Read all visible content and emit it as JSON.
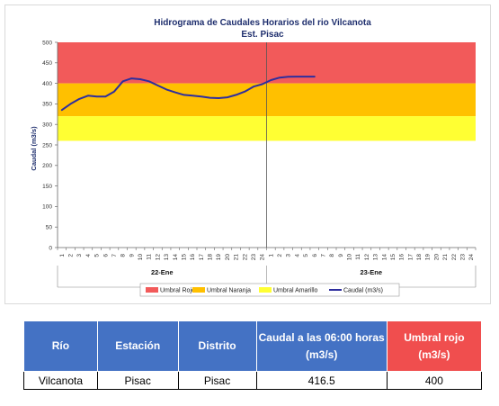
{
  "chart_data": {
    "type": "line",
    "title": "Hidrograma de Caudales Horarios del rio Vilcanota",
    "subtitle": "Est. Pisac",
    "ylabel": "Caudal  (m3/s)",
    "ylim": [
      0,
      500
    ],
    "yticks": [
      0,
      50,
      100,
      150,
      200,
      250,
      300,
      350,
      400,
      450,
      500
    ],
    "xtick_labels": [
      "1",
      "2",
      "3",
      "4",
      "5",
      "6",
      "7",
      "8",
      "9",
      "10",
      "11",
      "12",
      "13",
      "14",
      "15",
      "16",
      "17",
      "18",
      "19",
      "20",
      "21",
      "22",
      "23",
      "24",
      "1",
      "2",
      "3",
      "4",
      "5",
      "6",
      "7",
      "8",
      "9",
      "10",
      "11",
      "12",
      "13",
      "14",
      "15",
      "16",
      "17",
      "18",
      "19",
      "20",
      "21",
      "22",
      "23",
      "24"
    ],
    "day_labels": [
      "22-Ene",
      "23-Ene"
    ],
    "bands": [
      {
        "name": "Umbral Rojo",
        "from": 400,
        "to": 500,
        "color": "#f25a5a"
      },
      {
        "name": "Umbral Naranja",
        "from": 320,
        "to": 400,
        "color": "#ffc000"
      },
      {
        "name": "Umbral Amarillo",
        "from": 260,
        "to": 320,
        "color": "#ffff33"
      }
    ],
    "series": [
      {
        "name": "Caudal (m3/s)",
        "color": "#2e2e9e",
        "x": [
          1,
          2,
          3,
          4,
          5,
          6,
          7,
          8,
          9,
          10,
          11,
          12,
          13,
          14,
          15,
          16,
          17,
          18,
          19,
          20,
          21,
          22,
          23,
          24,
          25,
          26,
          27,
          28,
          29,
          30
        ],
        "values": [
          335,
          350,
          362,
          370,
          368,
          368,
          380,
          405,
          412,
          410,
          405,
          395,
          385,
          378,
          372,
          370,
          368,
          365,
          364,
          366,
          372,
          380,
          392,
          398,
          408,
          414,
          416,
          416.5,
          416.5,
          416.5
        ]
      }
    ],
    "legend": [
      "Umbral Rojo",
      "Umbral Naranja",
      "Umbral Amarillo",
      "Caudal (m3/s)"
    ],
    "legend_position": "bottom",
    "grid": false
  },
  "table": {
    "headers": [
      "Río",
      "Estación",
      "Distrito",
      "Caudal a las 06:00 horas (m3/s)",
      "Umbral rojo (m3/s)"
    ],
    "row": [
      "Vilcanota",
      "Pisac",
      "Pisac",
      "416.5",
      "400"
    ]
  }
}
